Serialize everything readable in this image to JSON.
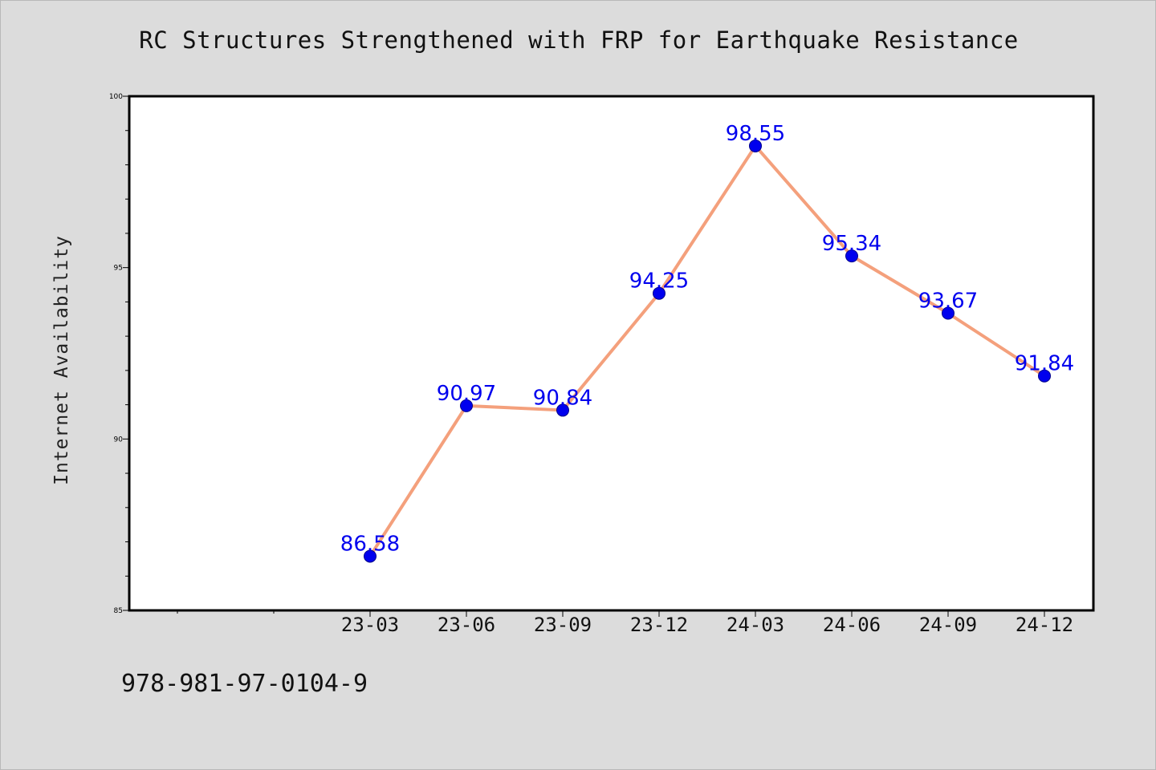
{
  "title": "RC Structures Strengthened with FRP for Earthquake Resistance",
  "footer_text": "978-981-97-0104-9",
  "chart_data": {
    "type": "line",
    "title": "RC Structures Strengthened with FRP for Earthquake Resistance",
    "xlabel": "",
    "ylabel": "Internet Availability",
    "categories": [
      "23-03",
      "23-06",
      "23-09",
      "23-12",
      "24-03",
      "24-06",
      "24-09",
      "24-12"
    ],
    "series": [
      {
        "values": [
          86.58,
          90.97,
          90.84,
          94.25,
          98.55,
          95.34,
          93.67,
          91.84
        ],
        "data_labels": [
          "86.58",
          "90.97",
          "90.84",
          "94.25",
          "98.55",
          "95.34",
          "93.67",
          "91.84"
        ],
        "line_color": "#f4a07c",
        "marker_color": "#0000ee",
        "label_color": "#0000ee"
      }
    ],
    "ylim": [
      85,
      100
    ],
    "yticks": [
      85,
      90,
      95,
      100
    ],
    "ytick_labels": [
      "85",
      "90",
      "95",
      "100"
    ],
    "grid": false,
    "legend": "none"
  }
}
